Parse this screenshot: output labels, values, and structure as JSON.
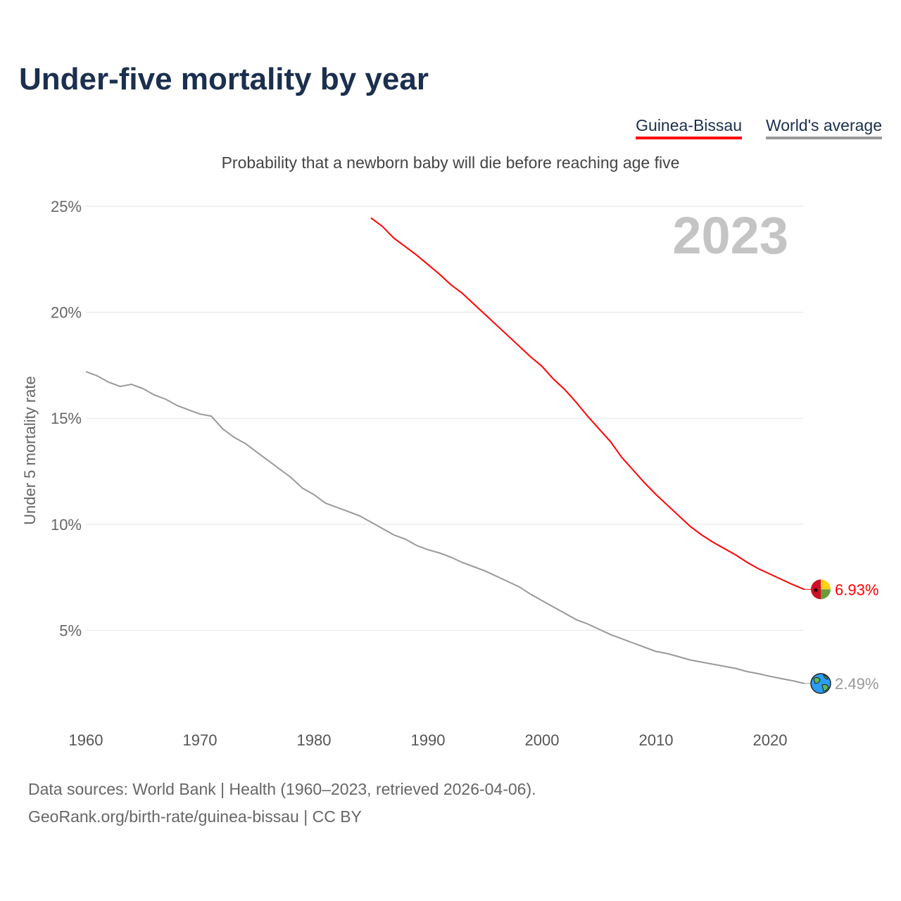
{
  "title": "Under-five mortality by year",
  "legend": [
    {
      "label": "Guinea-Bissau",
      "color": "#ff0000"
    },
    {
      "label": "World's average",
      "color": "#999999"
    }
  ],
  "subtitle": "Probability that a newborn baby will die before reaching age five",
  "year_label": "2023",
  "sources": [
    "Data sources: World Bank | Health (1960–2023, retrieved 2026-04-06).",
    "GeoRank.org/birth-rate/guinea-bissau | CC BY"
  ],
  "chart_data": {
    "type": "line",
    "title": "Under-five mortality by year",
    "ylabel": "Under 5 mortality rate",
    "xlabel": "",
    "xlim": [
      1960,
      2023
    ],
    "ylim": [
      0,
      25
    ],
    "xticks": [
      1960,
      1970,
      1980,
      1990,
      2000,
      2010,
      2020
    ],
    "yticks": [
      5,
      10,
      15,
      20,
      25
    ],
    "ytick_labels": [
      "5%",
      "10%",
      "15%",
      "20%",
      "25%"
    ],
    "grid": true,
    "legend_position": "top-right",
    "series": [
      {
        "name": "Guinea-Bissau",
        "color": "#ff0000",
        "end_label": "6.93%",
        "icon": "guinea-bissau-flag-icon",
        "x_start": 1985,
        "values": [
          24.45,
          24.05,
          23.5,
          23.1,
          22.7,
          22.25,
          21.8,
          21.3,
          20.9,
          20.4,
          19.9,
          19.4,
          18.9,
          18.4,
          17.9,
          17.45,
          16.85,
          16.35,
          15.75,
          15.1,
          14.5,
          13.9,
          13.15,
          12.55,
          11.95,
          11.4,
          10.9,
          10.4,
          9.9,
          9.5,
          9.15,
          8.85,
          8.55,
          8.2,
          7.9,
          7.65,
          7.4,
          7.15,
          6.93
        ]
      },
      {
        "name": "World's average",
        "color": "#999999",
        "end_label": "2.49%",
        "icon": "globe-icon",
        "x_start": 1960,
        "values": [
          17.2,
          17.0,
          16.7,
          16.5,
          16.6,
          16.4,
          16.1,
          15.9,
          15.6,
          15.4,
          15.2,
          15.1,
          14.5,
          14.1,
          13.8,
          13.4,
          13.0,
          12.6,
          12.2,
          11.7,
          11.4,
          11.0,
          10.8,
          10.6,
          10.4,
          10.1,
          9.8,
          9.5,
          9.3,
          9.0,
          8.8,
          8.65,
          8.45,
          8.2,
          8.0,
          7.8,
          7.55,
          7.3,
          7.05,
          6.7,
          6.4,
          6.1,
          5.8,
          5.5,
          5.3,
          5.05,
          4.8,
          4.6,
          4.4,
          4.2,
          4.0,
          3.9,
          3.75,
          3.6,
          3.5,
          3.4,
          3.3,
          3.2,
          3.05,
          2.95,
          2.83,
          2.72,
          2.62,
          2.49
        ]
      }
    ]
  }
}
